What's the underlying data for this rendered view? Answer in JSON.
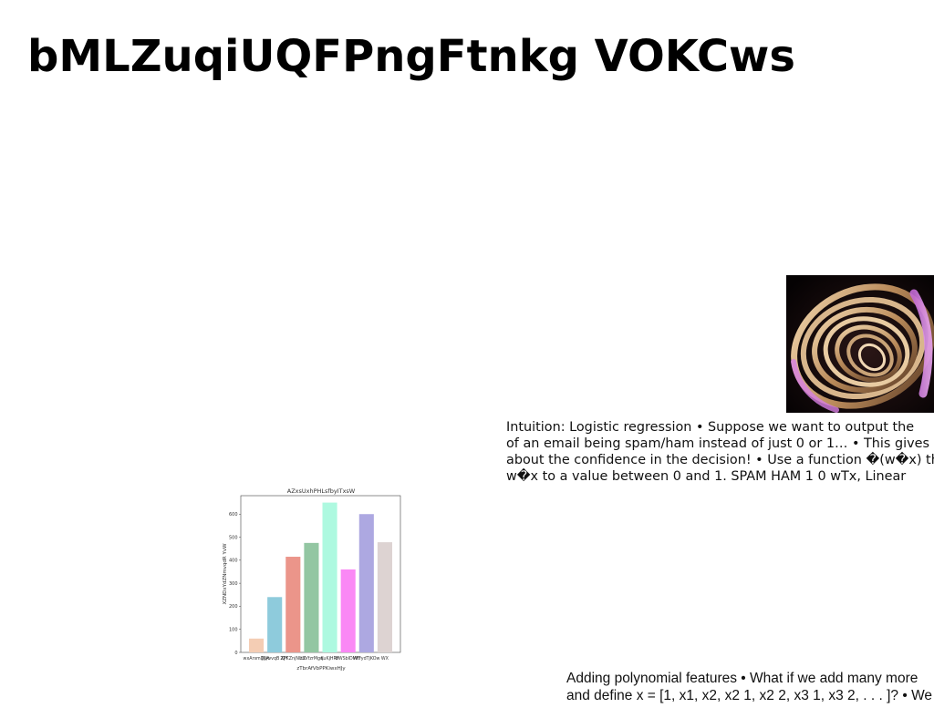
{
  "page": {
    "title": "bMLZuqiUQFPngFtnkg VOKCws"
  },
  "image": {
    "icon": "abstract-spiral-photo"
  },
  "text_blocks": {
    "intuition": [
      "Intuition: Logistic regression • Suppose we want to output the",
      "of an email being spam/ham instead of just 0 or 1… • This gives",
      "about the confidence in the decision! • Use a function �(w�x) that",
      "w�x to a value between 0 and 1. SPAM HAM 1 0 wTx, Linear"
    ],
    "polynomial": [
      "Adding polynomial features • What if we add many more",
      "and define x = [1, x1, x2, x2 1, x2 2, x3 1, x3 2, . . . ]? • We"
    ]
  },
  "chart_data": {
    "type": "bar",
    "title": "AZxsUxhPHLsfbyITxsW",
    "xlabel": "zTbrAfVbPPKiwxHJy",
    "ylabel": "XZNDxYdZNmvqdR YvW",
    "categories": [
      "wxArsmDJyt",
      "JKAvvqB XJY",
      "ZPKZnjNlLZ",
      "zhVfzrMgq",
      "KuKjHRF",
      "bWSblDMfT",
      "WtrydTjKOw",
      "WX"
    ],
    "values": [
      60,
      240,
      415,
      475,
      650,
      360,
      600,
      478
    ],
    "colors": [
      "#f4cdb4",
      "#8ecbdc",
      "#eb958a",
      "#93c6a2",
      "#aef9e0",
      "#fa88f5",
      "#ada8e1",
      "#ddd3d2"
    ],
    "ylim": [
      0,
      680
    ],
    "yticks": [
      0,
      100,
      200,
      300,
      400,
      500,
      600
    ],
    "grid": false
  }
}
